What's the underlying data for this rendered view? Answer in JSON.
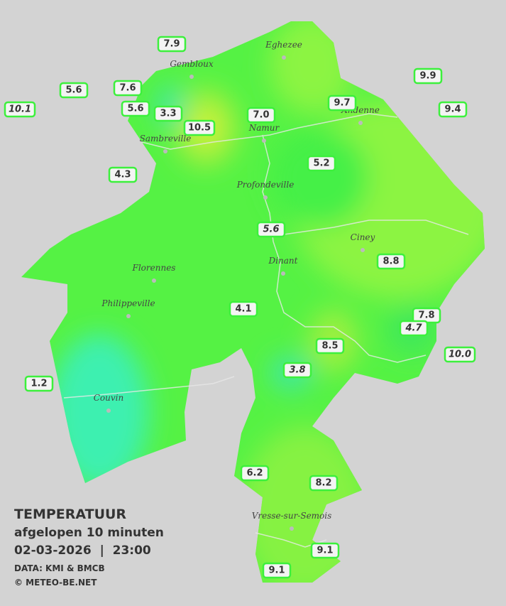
{
  "title": "TEMPERATUUR",
  "subtitle": "afgelopen 10 minuten",
  "timestamp": "02-03-2026  |  23:00",
  "source": "DATA: KMI & BMCB",
  "copyright": "© METEO-BE.NET",
  "cities": [
    "Eghezee",
    "Gembloux",
    "Andenne",
    "Namur",
    "Sambreville",
    "Profondeville",
    "Ciney",
    "Dinant",
    "Florennes",
    "Philippeville",
    "Couvin",
    "Vresse-sur-Semois"
  ],
  "stations": [
    "7.9",
    "5.6",
    "7.6",
    "10.1",
    "5.6",
    "3.3",
    "10.5",
    "7.0",
    "9.7",
    "9.9",
    "9.4",
    "4.3",
    "5.2",
    "5.6",
    "8.8",
    "4.1",
    "7.8",
    "4.7",
    "8.5",
    "10.0",
    "3.8",
    "1.2",
    "6.2",
    "8.2",
    "9.1",
    "9.1"
  ]
}
